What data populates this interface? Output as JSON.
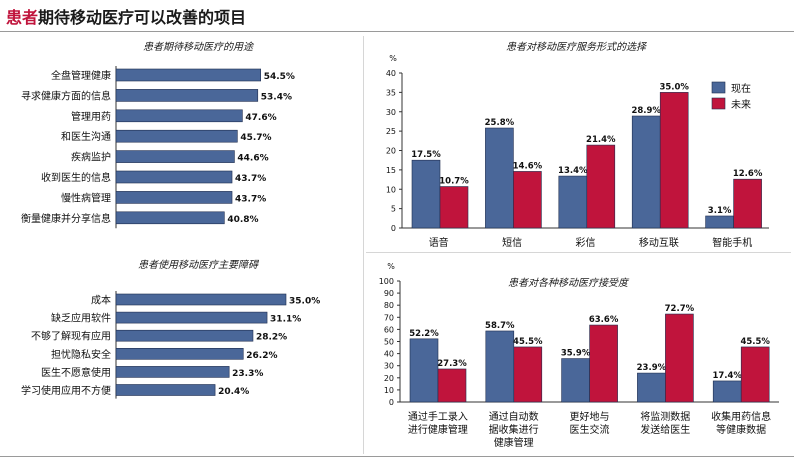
{
  "title": {
    "accent": "患者",
    "rest": "期待移动医疗可以改善的项目"
  },
  "colors": {
    "bar": "#4a6799",
    "bar_outline": "#1f2d4f",
    "now": "#4a6799",
    "future": "#c0143c",
    "accent": "#c0143c"
  },
  "chart_data": [
    {
      "type": "bar",
      "orientation": "horizontal",
      "title": "患者期待移动医疗的用途",
      "categories": [
        "全盘管理健康",
        "寻求健康方面的信息",
        "管理用药",
        "和医生沟通",
        "疾病监护",
        "收到医生的信息",
        "慢性病管理",
        "衡量健康并分享信息"
      ],
      "values": [
        54.5,
        53.4,
        47.6,
        45.7,
        44.6,
        43.7,
        43.7,
        40.8
      ],
      "value_labels": [
        "54.5%",
        "53.4%",
        "47.6%",
        "45.7%",
        "44.6%",
        "43.7%",
        "43.7%",
        "40.8%"
      ],
      "xlim": [
        0,
        60
      ]
    },
    {
      "type": "bar",
      "title": "患者对移动医疗服务形式的选择",
      "ylabel": "%",
      "ylim": [
        0,
        40
      ],
      "yticks": [
        "0",
        "5",
        "10",
        "15",
        "20",
        "25",
        "30",
        "35",
        "40"
      ],
      "categories": [
        "语音",
        "短信",
        "彩信",
        "移动互联",
        "智能手机"
      ],
      "series": [
        {
          "name": "现在",
          "values": [
            17.5,
            25.8,
            13.4,
            28.9,
            3.1
          ],
          "labels": [
            "17.5%",
            "25.8%",
            "13.4%",
            "28.9%",
            "3.1%"
          ]
        },
        {
          "name": "未来",
          "values": [
            10.7,
            14.6,
            21.4,
            35.0,
            12.6
          ],
          "labels": [
            "10.7%",
            "14.6%",
            "21.4%",
            "35.0%",
            "12.6%"
          ]
        }
      ],
      "legend": "right"
    },
    {
      "type": "bar",
      "orientation": "horizontal",
      "title": "患者使用移动医疗主要障碍",
      "categories": [
        "成本",
        "缺乏应用软件",
        "不够了解现有应用",
        "担忧隐私安全",
        "医生不愿意使用",
        "学习使用应用不方便"
      ],
      "values": [
        35.0,
        31.1,
        28.2,
        26.2,
        23.3,
        20.4
      ],
      "value_labels": [
        "35.0%",
        "31.1%",
        "28.2%",
        "26.2%",
        "23.3%",
        "20.4%"
      ],
      "xlim": [
        0,
        40
      ]
    },
    {
      "type": "bar",
      "title": "患者对各种移动医疗接受度",
      "ylabel": "%",
      "ylim": [
        0,
        100
      ],
      "yticks": [
        "0",
        "10",
        "20",
        "30",
        "40",
        "50",
        "60",
        "70",
        "80",
        "90",
        "100"
      ],
      "categories": [
        [
          "通过手工录入",
          "进行健康管理"
        ],
        [
          "通过自动数",
          "据收集进行",
          "健康管理"
        ],
        [
          "更好地与",
          "医生交流"
        ],
        [
          "将监测数据",
          "发送给医生"
        ],
        [
          "收集用药信息",
          "等健康数据"
        ]
      ],
      "series": [
        {
          "values": [
            52.2,
            58.7,
            35.9,
            23.9,
            17.4
          ],
          "labels": [
            "52.2%",
            "58.7%",
            "35.9%",
            "23.9%",
            "17.4%"
          ]
        },
        {
          "values": [
            27.3,
            45.5,
            63.6,
            72.7,
            45.5
          ],
          "labels": [
            "27.3%",
            "45.5%",
            "63.6%",
            "72.7%",
            "45.5%"
          ]
        }
      ]
    }
  ]
}
